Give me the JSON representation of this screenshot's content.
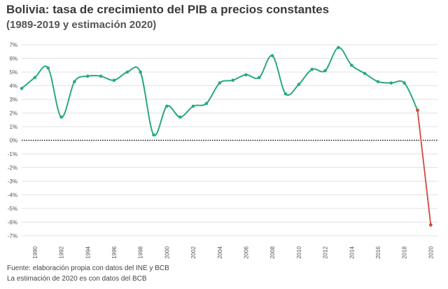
{
  "header": {
    "title": "Bolivia: tasa de crecimiento del PIB a precios constantes",
    "subtitle": "(1989-2019 y estimación 2020)"
  },
  "footer": {
    "source": "Fuente: elaboración propia con datos del INE y BCB",
    "note": "La estimación de 2020 es con datos del BCB"
  },
  "colors": {
    "series": "#2aa97f",
    "estimate": "#cf4a3f",
    "grid": "#e2e2e2",
    "zero_line": "#222222"
  },
  "chart_data": {
    "type": "line",
    "title": "Bolivia: tasa de crecimiento del PIB a precios constantes",
    "subtitle": "(1989-2019 y estimación 2020)",
    "xlabel": "",
    "ylabel": "",
    "ylim": [
      -7,
      7
    ],
    "y_ticks": [
      "7%",
      "6%",
      "5%",
      "4%",
      "3%",
      "2%",
      "1%",
      "0%",
      "-1%",
      "-2%",
      "-3%",
      "-4%",
      "-5%",
      "-6%",
      "-7%"
    ],
    "x_ticks": [
      "1990",
      "1992",
      "1994",
      "1996",
      "1998",
      "2000",
      "2002",
      "2004",
      "2006",
      "2008",
      "2010",
      "2012",
      "2014",
      "2016",
      "2018",
      "2020"
    ],
    "grid": true,
    "zero_line": "dotted",
    "series": [
      {
        "years": [
          1989,
          1990,
          1991,
          1992,
          1993,
          1994,
          1995,
          1996,
          1997,
          1998,
          1999,
          2000,
          2001,
          2002,
          2003,
          2004,
          2005,
          2006,
          2007,
          2008,
          2009,
          2010,
          2011,
          2012,
          2013,
          2014,
          2015,
          2016,
          2017,
          2018,
          2019
        ],
        "values": [
          3.8,
          4.6,
          5.3,
          1.7,
          4.3,
          4.7,
          4.7,
          4.4,
          5.0,
          5.0,
          0.4,
          2.5,
          1.7,
          2.5,
          2.7,
          4.2,
          4.4,
          4.8,
          4.6,
          6.2,
          3.4,
          4.1,
          5.2,
          5.1,
          6.8,
          5.5,
          4.9,
          4.3,
          4.2,
          4.2,
          2.2
        ]
      },
      {
        "years": [
          2019,
          2020
        ],
        "values": [
          2.2,
          -6.2
        ]
      }
    ]
  }
}
